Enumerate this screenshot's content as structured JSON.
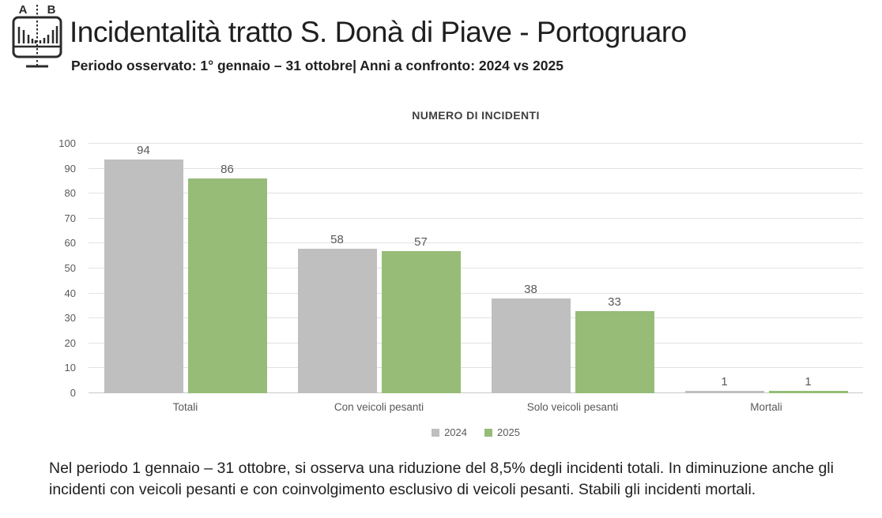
{
  "header": {
    "icon_label_a": "A",
    "icon_label_b": "B",
    "title": "Incidentalità tratto S. Donà di Piave - Portogruaro",
    "subtitle": "Periodo osservato: 1° gennaio – 31 ottobre| Anni a confronto: 2024 vs 2025"
  },
  "chart_data": {
    "type": "bar",
    "title": "NUMERO DI INCIDENTI",
    "categories": [
      "Totali",
      "Con veicoli pesanti",
      "Solo veicoli pesanti",
      "Mortali"
    ],
    "series": [
      {
        "name": "2024",
        "color": "#BFBFBF",
        "values": [
          94,
          58,
          38,
          1
        ]
      },
      {
        "name": "2025",
        "color": "#96BC78",
        "values": [
          86,
          57,
          33,
          1
        ]
      }
    ],
    "ylim": [
      0,
      100
    ],
    "ytick_step": 10,
    "grid": true,
    "legend_position": "bottom",
    "colors": {
      "grid": "#e2e2e2",
      "axis": "#c9c9c9",
      "label": "#595959"
    }
  },
  "footer": {
    "note": "Nel periodo 1 gennaio –  31 ottobre, si osserva una riduzione del 8,5% degli incidenti totali. In diminuzione anche gli incidenti con veicoli pesanti e con coinvolgimento esclusivo di veicoli pesanti. Stabili gli incidenti mortali."
  }
}
